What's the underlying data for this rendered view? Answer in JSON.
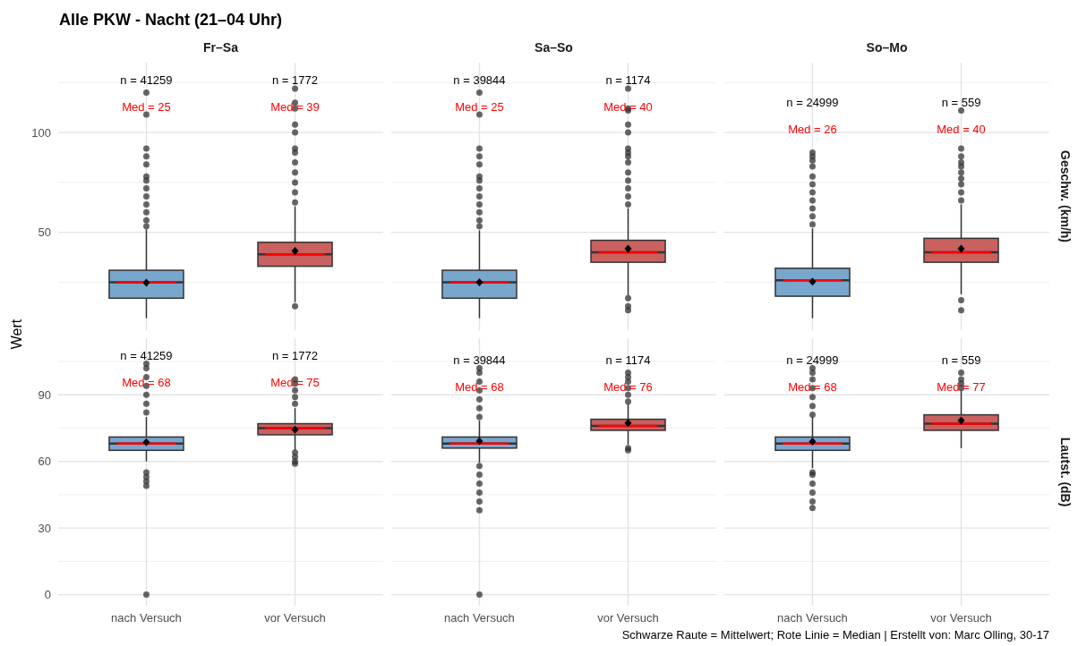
{
  "chart_data": [
    {
      "type": "box",
      "title": "Alle PKW - Nacht (21–04 Uhr)",
      "subtitle": "Fr–Sa",
      "ylabel": "Wert",
      "categories": [
        "nach Versuch",
        "vor Versuch"
      ],
      "colors": [
        "#79a6cd",
        "#c96161"
      ],
      "ylim": [
        1,
        135
      ],
      "yticks": [
        50,
        100
      ],
      "grid": true,
      "tick_labels": "y",
      "boxes": [
        {
          "low": 7,
          "q1": 17,
          "median": 25,
          "q3": 31,
          "high": 51.5,
          "mean": 24.7,
          "outliers": [
            53,
            56,
            60,
            64,
            68,
            72,
            76,
            78,
            84,
            88,
            92,
            109,
            120
          ]
        },
        {
          "low": 15,
          "q1": 33,
          "median": 39,
          "q3": 45,
          "high": 63,
          "mean": 40.7,
          "outliers": [
            13,
            65,
            70,
            75,
            80,
            85,
            90,
            92,
            100,
            104,
            112,
            115,
            122
          ]
        }
      ],
      "annotations": [
        "n = 41259",
        "Med = 25",
        "n = 1772",
        "Med = 39"
      ]
    },
    {
      "type": "box",
      "subtitle": "Sa–So",
      "categories": [
        "nach Versuch",
        "vor Versuch"
      ],
      "colors": [
        "#79a6cd",
        "#c96161"
      ],
      "ylim": [
        1,
        135
      ],
      "yticks": [
        50,
        100
      ],
      "grid": true,
      "tick_labels": false,
      "boxes": [
        {
          "low": 7,
          "q1": 17,
          "median": 25,
          "q3": 31,
          "high": 51,
          "mean": 25,
          "outliers": [
            53,
            56,
            60,
            64,
            68,
            72,
            76,
            78,
            84,
            88,
            92,
            109,
            120
          ]
        },
        {
          "low": 18.5,
          "q1": 35,
          "median": 40,
          "q3": 46,
          "high": 62,
          "mean": 41.8,
          "outliers": [
            11,
            13,
            17,
            64,
            68,
            72,
            76,
            80,
            85,
            88,
            90,
            92,
            100,
            104,
            111,
            112,
            122
          ]
        }
      ],
      "annotations": [
        "n = 39844",
        "Med = 25",
        "n = 1174",
        "Med = 40"
      ]
    },
    {
      "type": "box",
      "subtitle": "So–Mo",
      "categories": [
        "nach Versuch",
        "vor Versuch"
      ],
      "colors": [
        "#79a6cd",
        "#c96161"
      ],
      "ylim": [
        1,
        135
      ],
      "yticks": [
        50,
        100
      ],
      "grid": true,
      "tick_labels": false,
      "boxes": [
        {
          "low": 7,
          "q1": 18,
          "median": 26,
          "q3": 32,
          "high": 52,
          "mean": 25.3,
          "outliers": [
            54,
            58,
            62,
            66,
            70,
            74,
            78,
            83,
            86,
            88,
            90
          ]
        },
        {
          "low": 19,
          "q1": 35,
          "median": 40,
          "q3": 47,
          "high": 64,
          "mean": 41.8,
          "outliers": [
            11,
            16,
            66,
            70,
            74,
            77,
            80,
            83,
            85,
            88,
            92,
            111
          ]
        }
      ],
      "annotations": [
        "n = 24999",
        "Med = 26",
        "n = 559",
        "Med = 40",
        "Geschw. (km/h)"
      ]
    },
    {
      "type": "box",
      "categories": [
        "nach Versuch",
        "vor Versuch"
      ],
      "colors": [
        "#79a6cd",
        "#c96161"
      ],
      "ylim": [
        -5,
        115.5
      ],
      "yticks": [
        0,
        30,
        60,
        90
      ],
      "grid": true,
      "boxes": [
        {
          "low": 60,
          "q1": 65,
          "median": 68,
          "q3": 71,
          "high": 80,
          "mean": 68.7,
          "outliers": [
            0,
            49,
            51,
            53,
            55,
            82,
            86,
            90,
            94,
            98,
            102,
            104
          ]
        },
        {
          "low": 65,
          "q1": 72,
          "median": 75,
          "q3": 77,
          "high": 84,
          "mean": 74.3,
          "outliers": [
            59,
            60,
            62,
            64,
            86,
            89,
            92,
            95,
            97
          ]
        }
      ],
      "annotations": [
        "n = 41259",
        "Med = 68",
        "n = 1772",
        "Med = 75"
      ]
    },
    {
      "type": "box",
      "categories": [
        "nach Versuch",
        "vor Versuch"
      ],
      "colors": [
        "#79a6cd",
        "#c96161"
      ],
      "ylim": [
        -5,
        115.5
      ],
      "yticks": [
        0,
        30,
        60,
        90
      ],
      "grid": true,
      "tick_labels": "x",
      "boxes": [
        {
          "low": 59.5,
          "q1": 66,
          "median": 68,
          "q3": 71,
          "high": 78.4,
          "mean": 69.2,
          "outliers": [
            0,
            38,
            42,
            46,
            50,
            54,
            58,
            80,
            84,
            88,
            92,
            96,
            100,
            102
          ]
        },
        {
          "low": 67.6,
          "q1": 74,
          "median": 76,
          "q3": 79,
          "high": 86,
          "mean": 77.3,
          "outliers": [
            65,
            66,
            87,
            90,
            93,
            96,
            98,
            100
          ]
        }
      ],
      "annotations": [
        "n = 39844",
        "Med = 68",
        "n = 1174",
        "Med = 76"
      ]
    },
    {
      "type": "box",
      "categories": [
        "nach Versuch",
        "vor Versuch"
      ],
      "colors": [
        "#79a6cd",
        "#c96161"
      ],
      "ylim": [
        -5,
        115.5
      ],
      "yticks": [
        0,
        30,
        60,
        90
      ],
      "grid": true,
      "tick_labels": "x",
      "boxes": [
        {
          "low": 57,
          "q1": 65,
          "median": 68,
          "q3": 71,
          "high": 80,
          "mean": 69,
          "outliers": [
            39,
            42,
            46,
            50,
            54,
            55,
            81,
            85,
            89,
            93,
            97,
            100,
            102
          ]
        },
        {
          "low": 66,
          "q1": 74,
          "median": 77,
          "q3": 81,
          "high": 92,
          "mean": 78.4,
          "outliers": [
            93,
            95,
            97,
            100
          ]
        }
      ],
      "annotations": [
        "n = 24999",
        "Med = 68",
        "n = 559",
        "Med = 77",
        "Lautst. (dB)",
        "Schwarze Raute = Mittelwert; Rote Linie = Median | Erstellt von: Marc Olling, 30-17"
      ]
    }
  ]
}
